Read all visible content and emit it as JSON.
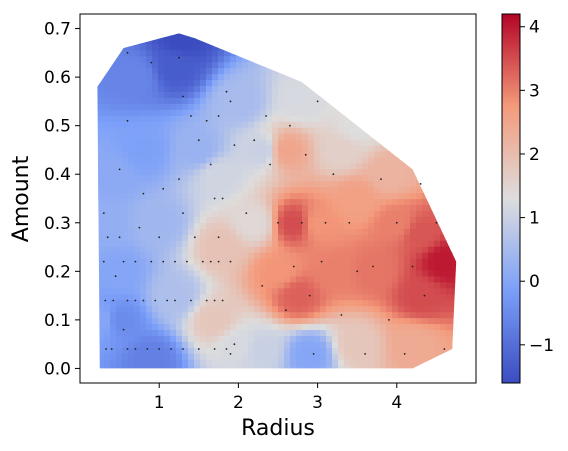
{
  "chart_data": {
    "type": "heatmap",
    "title": "",
    "xlabel": "Radius",
    "ylabel": "Amount",
    "xlim": [
      0.0,
      5.0
    ],
    "ylim": [
      -0.03,
      0.73
    ],
    "x_ticks": [
      1,
      2,
      3,
      4
    ],
    "y_ticks": [
      0.0,
      0.1,
      0.2,
      0.3,
      0.4,
      0.5,
      0.6,
      0.7
    ],
    "colormap": "coolwarm",
    "colors": {
      "low": "#3b4cc0",
      "mid": "#dddddd",
      "high": "#b40426"
    },
    "colorbar": {
      "range": [
        -1.6,
        4.2
      ],
      "ticks": [
        -1,
        0,
        1,
        2,
        3,
        4
      ]
    },
    "hull": [
      [
        0.22,
        0.58
      ],
      [
        0.55,
        0.66
      ],
      [
        1.25,
        0.69
      ],
      [
        1.45,
        0.68
      ],
      [
        2.8,
        0.59
      ],
      [
        4.2,
        0.41
      ],
      [
        4.75,
        0.22
      ],
      [
        4.7,
        0.04
      ],
      [
        4.2,
        0.0
      ],
      [
        0.25,
        0.0
      ]
    ],
    "value_field": [
      [
        0.5,
        0.2,
        0.0
      ],
      [
        0.5,
        0.1,
        -0.5
      ],
      [
        0.9,
        0.02,
        -0.7
      ],
      [
        1.2,
        0.62,
        -1.3
      ],
      [
        1.3,
        0.68,
        -1.6
      ],
      [
        0.7,
        0.6,
        -0.6
      ],
      [
        0.4,
        0.4,
        0.1
      ],
      [
        0.3,
        0.3,
        0.2
      ],
      [
        1.0,
        0.3,
        0.4
      ],
      [
        1.2,
        0.15,
        0.6
      ],
      [
        1.8,
        0.25,
        1.9
      ],
      [
        1.7,
        0.1,
        1.8
      ],
      [
        1.75,
        0.4,
        1.1
      ],
      [
        2.0,
        0.55,
        0.5
      ],
      [
        2.2,
        0.3,
        1.4
      ],
      [
        2.3,
        0.45,
        1.0
      ],
      [
        2.5,
        0.2,
        2.8
      ],
      [
        2.7,
        0.3,
        3.5
      ],
      [
        2.75,
        0.15,
        3.3
      ],
      [
        2.6,
        0.45,
        2.5
      ],
      [
        2.8,
        0.55,
        1.2
      ],
      [
        3.0,
        0.3,
        2.8
      ],
      [
        3.2,
        0.2,
        3.0
      ],
      [
        3.5,
        0.35,
        2.6
      ],
      [
        3.7,
        0.2,
        3.1
      ],
      [
        4.0,
        0.3,
        3.0
      ],
      [
        4.3,
        0.28,
        3.4
      ],
      [
        4.6,
        0.22,
        4.0
      ],
      [
        4.3,
        0.15,
        3.5
      ],
      [
        4.2,
        0.05,
        2.4
      ],
      [
        3.5,
        0.05,
        1.8
      ],
      [
        2.9,
        0.03,
        0.0
      ],
      [
        2.3,
        0.04,
        1.0
      ],
      [
        3.3,
        0.45,
        1.6
      ],
      [
        3.9,
        0.4,
        2.2
      ],
      [
        1.5,
        0.45,
        0.3
      ],
      [
        0.8,
        0.45,
        -0.1
      ],
      [
        3.5,
        0.5,
        1.3
      ],
      [
        2.0,
        0.05,
        1.2
      ],
      [
        0.3,
        0.1,
        0.0
      ]
    ],
    "sample_points": [
      [
        0.3,
        0.32
      ],
      [
        0.35,
        0.27
      ],
      [
        0.3,
        0.22
      ],
      [
        0.32,
        0.14
      ],
      [
        0.33,
        0.04
      ],
      [
        0.45,
        0.19
      ],
      [
        0.42,
        0.14
      ],
      [
        0.4,
        0.04
      ],
      [
        0.5,
        0.27
      ],
      [
        0.55,
        0.22
      ],
      [
        0.6,
        0.14
      ],
      [
        0.55,
        0.08
      ],
      [
        0.6,
        0.04
      ],
      [
        0.7,
        0.22
      ],
      [
        0.7,
        0.14
      ],
      [
        0.7,
        0.04
      ],
      [
        0.8,
        0.36
      ],
      [
        0.8,
        0.14
      ],
      [
        0.85,
        0.04
      ],
      [
        0.9,
        0.22
      ],
      [
        0.95,
        0.14
      ],
      [
        1.0,
        0.27
      ],
      [
        1.0,
        0.04
      ],
      [
        1.05,
        0.22
      ],
      [
        1.1,
        0.14
      ],
      [
        1.15,
        0.04
      ],
      [
        1.2,
        0.22
      ],
      [
        1.2,
        0.14
      ],
      [
        1.25,
        0.39
      ],
      [
        1.3,
        0.04
      ],
      [
        1.35,
        0.22
      ],
      [
        1.4,
        0.14
      ],
      [
        1.45,
        0.27
      ],
      [
        1.5,
        0.04
      ],
      [
        1.55,
        0.22
      ],
      [
        1.6,
        0.14
      ],
      [
        1.65,
        0.22
      ],
      [
        1.7,
        0.35
      ],
      [
        1.7,
        0.14
      ],
      [
        1.7,
        0.04
      ],
      [
        1.75,
        0.27
      ],
      [
        1.75,
        0.22
      ],
      [
        1.8,
        0.35
      ],
      [
        1.8,
        0.14
      ],
      [
        1.85,
        0.04
      ],
      [
        1.9,
        0.22
      ],
      [
        1.9,
        0.03
      ],
      [
        1.95,
        0.05
      ],
      [
        0.6,
        0.51
      ],
      [
        0.6,
        0.65
      ],
      [
        0.9,
        0.63
      ],
      [
        1.25,
        0.64
      ],
      [
        1.3,
        0.56
      ],
      [
        1.4,
        0.52
      ],
      [
        1.5,
        0.47
      ],
      [
        1.6,
        0.51
      ],
      [
        1.65,
        0.42
      ],
      [
        1.75,
        0.52
      ],
      [
        1.85,
        0.57
      ],
      [
        1.9,
        0.55
      ],
      [
        0.5,
        0.41
      ],
      [
        0.75,
        0.29
      ],
      [
        1.05,
        0.37
      ],
      [
        1.3,
        0.32
      ],
      [
        2.1,
        0.32
      ],
      [
        2.3,
        0.17
      ],
      [
        2.4,
        0.42
      ],
      [
        2.5,
        0.3
      ],
      [
        2.6,
        0.12
      ],
      [
        2.7,
        0.21
      ],
      [
        2.8,
        0.3
      ],
      [
        2.85,
        0.44
      ],
      [
        2.9,
        0.15
      ],
      [
        2.95,
        0.03
      ],
      [
        3.05,
        0.22
      ],
      [
        3.1,
        0.3
      ],
      [
        3.2,
        0.4
      ],
      [
        3.3,
        0.11
      ],
      [
        3.4,
        0.3
      ],
      [
        3.5,
        0.2
      ],
      [
        3.6,
        0.03
      ],
      [
        3.7,
        0.21
      ],
      [
        3.8,
        0.39
      ],
      [
        3.9,
        0.1
      ],
      [
        4.0,
        0.3
      ],
      [
        4.1,
        0.03
      ],
      [
        4.2,
        0.21
      ],
      [
        4.3,
        0.38
      ],
      [
        4.35,
        0.15
      ],
      [
        4.5,
        0.3
      ],
      [
        4.6,
        0.04
      ],
      [
        2.65,
        0.5
      ],
      [
        3.0,
        0.55
      ],
      [
        2.2,
        0.47
      ],
      [
        2.35,
        0.52
      ],
      [
        1.95,
        0.46
      ]
    ]
  }
}
